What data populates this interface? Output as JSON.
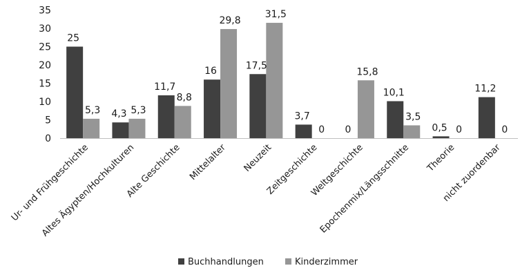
{
  "chart_data": {
    "type": "bar",
    "categories": [
      "Ur- und Frühgeschichte",
      "Altes Ägypten/Hochkulturen",
      "Alte Geschichte",
      "Mittelalter",
      "Neuzeit",
      "Zeitgeschichte",
      "Weltgeschichte",
      "Epochenmix/Längsschnitte",
      "Theorie",
      "nicht zuordenbar"
    ],
    "series": [
      {
        "name": "Buchhandlungen",
        "color": "#404040",
        "values": [
          25,
          4.3,
          11.7,
          16,
          17.5,
          3.7,
          0,
          10.1,
          0.5,
          11.2
        ],
        "labels": [
          "25",
          "4,3",
          "11,7",
          "16",
          "17,5",
          "3,7",
          "0",
          "10,1",
          "0,5",
          "11,2"
        ]
      },
      {
        "name": "Kinderzimmer",
        "color": "#969696",
        "values": [
          5.3,
          5.3,
          8.8,
          29.8,
          31.5,
          0,
          15.8,
          3.5,
          0,
          0
        ],
        "labels": [
          "5,3",
          "5,3",
          "8,8",
          "29,8",
          "31,5",
          "0",
          "15,8",
          "3,5",
          "0",
          "0"
        ]
      }
    ],
    "y_ticks": [
      "0",
      "5",
      "10",
      "15",
      "20",
      "25",
      "30",
      "35"
    ],
    "ylim": [
      0,
      35
    ],
    "grid": false,
    "legend_position": "bottom",
    "title": "",
    "xlabel": "",
    "ylabel": ""
  }
}
